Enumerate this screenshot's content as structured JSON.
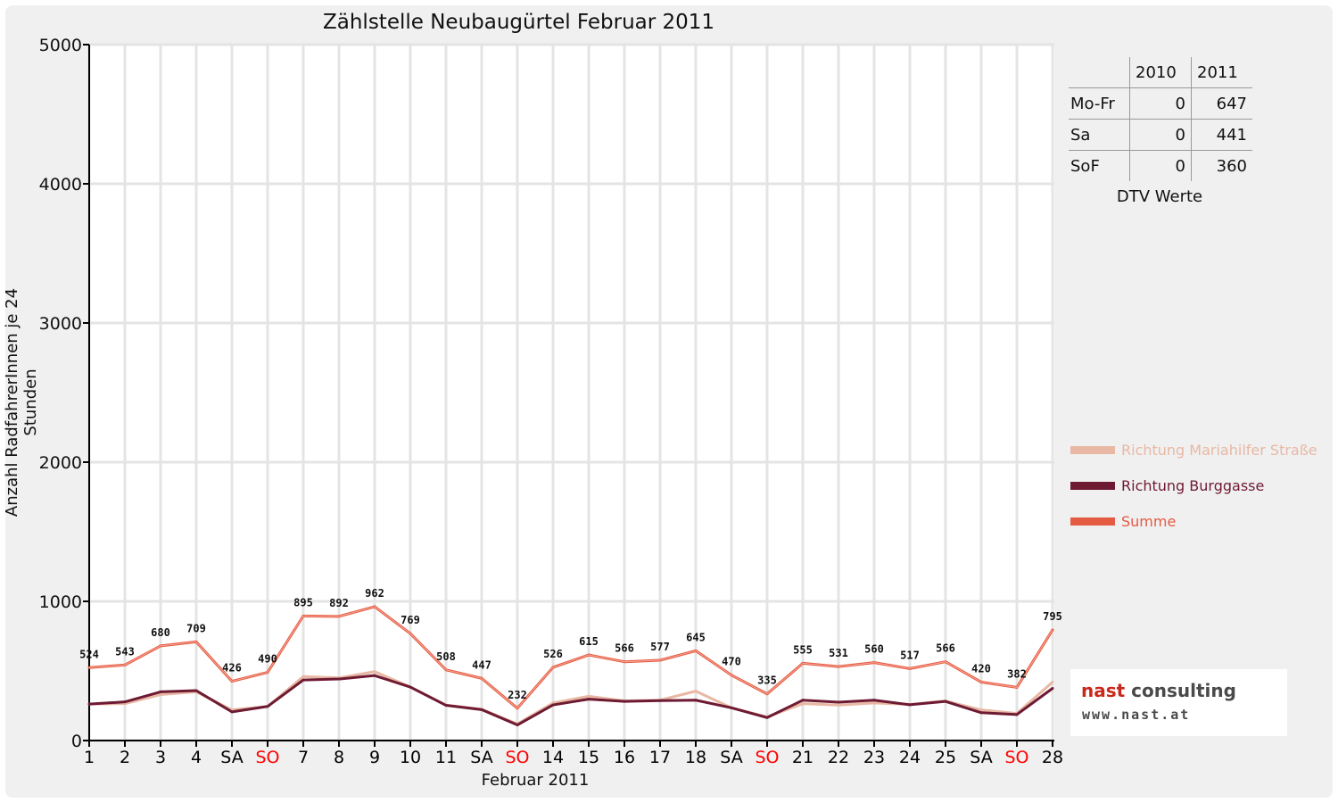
{
  "chart_data": {
    "type": "line",
    "title": "Zählstelle Neubaugürtel Februar 2011",
    "xlabel": "Februar 2011",
    "ylabel": "Anzahl RadfahrerInnen je 24 Stunden",
    "ylim": [
      0,
      5000
    ],
    "yticks": [
      "0",
      "1000",
      "2000",
      "3000",
      "4000",
      "5000"
    ],
    "grid": true,
    "legend_position": "right",
    "categories": [
      "1",
      "2",
      "3",
      "4",
      "SA",
      "SO",
      "7",
      "8",
      "9",
      "10",
      "11",
      "SA",
      "SO",
      "14",
      "15",
      "16",
      "17",
      "18",
      "SA",
      "SO",
      "21",
      "22",
      "23",
      "24",
      "25",
      "SA",
      "SO",
      "28"
    ],
    "weekend_color": "#ff0000",
    "weekday_color": "#000000",
    "sunday_label": "SO",
    "series": [
      {
        "name": "Richtung Mariahilfer Straße",
        "color": "#e8b8a4",
        "values": [
          262,
          265,
          330,
          350,
          220,
          245,
          460,
          450,
          495,
          385,
          255,
          225,
          120,
          270,
          318,
          285,
          290,
          355,
          235,
          170,
          265,
          255,
          270,
          260,
          285,
          220,
          195,
          420
        ]
      },
      {
        "name": "Richtung Burggasse",
        "color": "#6e1a33",
        "values": [
          262,
          278,
          350,
          359,
          206,
          245,
          435,
          442,
          467,
          384,
          253,
          222,
          112,
          256,
          297,
          281,
          287,
          290,
          235,
          165,
          290,
          276,
          290,
          257,
          281,
          200,
          187,
          375
        ]
      },
      {
        "name": "Summe",
        "color": "#e55a42",
        "values": [
          524,
          543,
          680,
          709,
          426,
          490,
          895,
          892,
          962,
          769,
          508,
          447,
          232,
          526,
          615,
          566,
          577,
          645,
          470,
          335,
          555,
          531,
          560,
          517,
          566,
          420,
          382,
          795
        ]
      }
    ],
    "data_labels": [
      "524",
      "543",
      "680",
      "709",
      "426",
      "490",
      "895",
      "892",
      "962",
      "769",
      "508",
      "447",
      "232",
      "526",
      "615",
      "566",
      "577",
      "645",
      "470",
      "335",
      "555",
      "531",
      "560",
      "517",
      "566",
      "420",
      "382",
      "795"
    ]
  },
  "dtv_table": {
    "headers": [
      "2010",
      "2011"
    ],
    "rows": [
      {
        "label": "Mo-Fr",
        "v2010": "0",
        "v2011": "647"
      },
      {
        "label": "Sa",
        "v2010": "0",
        "v2011": "441"
      },
      {
        "label": "SoF",
        "v2010": "0",
        "v2011": "360"
      }
    ],
    "caption": "DTV Werte"
  },
  "logo": {
    "name_part1": "nast",
    "name_part2": " consulting",
    "url": "www.nast.at",
    "color_red": "#c9281a",
    "color_grey": "#4a4a4a"
  }
}
